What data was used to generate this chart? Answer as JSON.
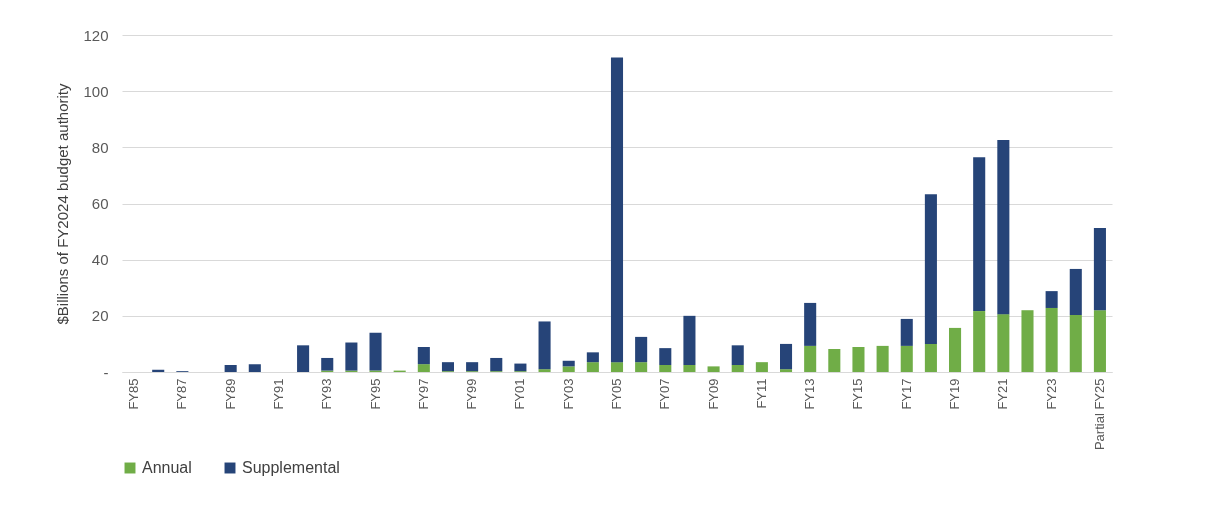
{
  "chart_data": {
    "type": "bar",
    "stacked": true,
    "ylabel": "$Billions of FY2024 budget authority",
    "categories": [
      "FY85",
      null,
      "FY87",
      null,
      "FY89",
      null,
      "FY91",
      null,
      "FY93",
      null,
      "FY95",
      null,
      "FY97",
      null,
      "FY99",
      null,
      "FY01",
      null,
      "FY03",
      null,
      "FY05",
      null,
      "FY07",
      null,
      "FY09",
      null,
      "FY11",
      null,
      "FY13",
      null,
      "FY15",
      null,
      "FY17",
      null,
      "FY19",
      null,
      "FY21",
      null,
      "FY23",
      null,
      "Partial FY25"
    ],
    "series": [
      {
        "name": "Annual",
        "color": "#70ad47",
        "values": [
          0,
          0,
          0,
          0,
          0,
          0,
          0,
          0,
          0.5,
          0.5,
          0.5,
          0.5,
          2.8,
          0.3,
          0.3,
          0.3,
          0.3,
          1,
          2,
          3.5,
          3.5,
          3.5,
          2.5,
          2.5,
          2,
          2.5,
          3.5,
          1,
          9.3,
          8.2,
          8.9,
          9.3,
          9.3,
          10,
          15.7,
          21.7,
          20.6,
          22,
          22.8,
          20.3,
          22
        ]
      },
      {
        "name": "Supplemental",
        "color": "#264478",
        "values": [
          0,
          0.8,
          0.3,
          0,
          2.5,
          2.8,
          0,
          9.5,
          4.5,
          10,
          13.5,
          0,
          6.1,
          3.2,
          3.2,
          4.7,
          2.7,
          17,
          2,
          3.5,
          108.5,
          9,
          6,
          17.5,
          0,
          7,
          0,
          9,
          15.3,
          0,
          0,
          0,
          9.6,
          53.3,
          0,
          54.8,
          62,
          0,
          6,
          16.4,
          29.3
        ]
      }
    ],
    "ylim": [
      0,
      120
    ],
    "yticks": [
      {
        "value": 0,
        "label": "-"
      },
      20,
      40,
      60,
      80,
      100,
      120
    ],
    "grid": "y",
    "legend": "bottom"
  }
}
